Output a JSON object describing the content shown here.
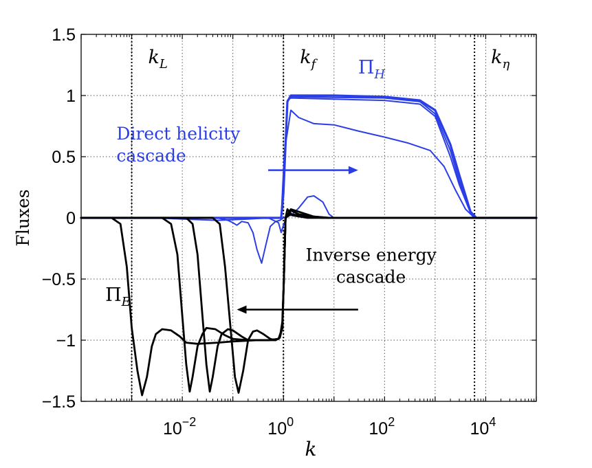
{
  "chart_data": {
    "type": "line",
    "xscale": "log",
    "xlim": [
      0.0001,
      100000
    ],
    "ylim": [
      -1.5,
      1.5
    ],
    "xlabel": "k",
    "ylabel": "Fluxes",
    "grid": "dotted",
    "yticks": [
      {
        "value": 1.5,
        "label": "1.5"
      },
      {
        "value": 1,
        "label": "1"
      },
      {
        "value": 0.5,
        "label": "0.5"
      },
      {
        "value": 0,
        "label": "0"
      },
      {
        "value": -0.5,
        "label": "−0.5"
      },
      {
        "value": -1,
        "label": "−1"
      },
      {
        "value": -1.5,
        "label": "−1.5"
      }
    ],
    "xticks": [
      {
        "value": 0.01,
        "base": "10",
        "exp": "−2"
      },
      {
        "value": 1,
        "base": "10",
        "exp": "0"
      },
      {
        "value": 100,
        "base": "10",
        "exp": "2"
      },
      {
        "value": 10000,
        "base": "10",
        "exp": "4"
      }
    ],
    "vlines": [
      {
        "k": 0.001,
        "label_main": "k",
        "label_sub": "L"
      },
      {
        "k": 1,
        "label_main": "k",
        "label_sub": "f"
      },
      {
        "k": 6000,
        "label_main": "k",
        "label_sub": "η"
      }
    ],
    "series_labels": [
      {
        "main": "Π",
        "sub": "H",
        "color": "#2b3ee6",
        "at": [
          30,
          1.18
        ]
      },
      {
        "main": "Π",
        "sub": "E",
        "color": "#000000",
        "at": [
          0.0003,
          -0.68
        ]
      }
    ],
    "annotations": [
      {
        "lines": [
          "Direct helicity",
          "cascade"
        ],
        "color": "#2b3ee6",
        "at": [
          0.0005,
          0.64
        ]
      },
      {
        "lines": [
          "Inverse energy",
          "cascade"
        ],
        "color": "#000000",
        "at": [
          5,
          -0.35
        ]
      }
    ],
    "arrows": [
      {
        "from": [
          0.5,
          0.39
        ],
        "to": [
          30,
          0.39
        ],
        "color": "#2b3ee6"
      },
      {
        "from": [
          30,
          -0.75
        ],
        "to": [
          0.12,
          -0.75
        ],
        "color": "#000000"
      }
    ],
    "series": [
      {
        "name": "Pi_H full",
        "color": "#2b3ee6",
        "width": 3.2,
        "points": [
          [
            0.0001,
            0
          ],
          [
            0.9,
            0
          ],
          [
            1,
            0.2
          ],
          [
            1.2,
            0.95
          ],
          [
            1.4,
            1.0
          ],
          [
            10,
            1.0
          ],
          [
            100,
            0.99
          ],
          [
            500,
            0.96
          ],
          [
            1000,
            0.88
          ],
          [
            2000,
            0.6
          ],
          [
            3000,
            0.35
          ],
          [
            5000,
            0.05
          ],
          [
            6500,
            0
          ],
          [
            100000,
            0
          ]
        ]
      },
      {
        "name": "Pi_H 2",
        "color": "#2b3ee6",
        "width": 2,
        "points": [
          [
            0.0001,
            0
          ],
          [
            0.9,
            0
          ],
          [
            1,
            0.2
          ],
          [
            1.2,
            0.96
          ],
          [
            1.4,
            0.99
          ],
          [
            10,
            0.985
          ],
          [
            100,
            0.98
          ],
          [
            500,
            0.95
          ],
          [
            1000,
            0.85
          ],
          [
            2000,
            0.55
          ],
          [
            3000,
            0.3
          ],
          [
            5000,
            0.05
          ],
          [
            6500,
            0
          ],
          [
            100000,
            0
          ]
        ]
      },
      {
        "name": "Pi_H 3",
        "color": "#2b3ee6",
        "width": 2,
        "points": [
          [
            0.0001,
            0
          ],
          [
            0.9,
            0
          ],
          [
            1,
            0.2
          ],
          [
            1.2,
            0.96
          ],
          [
            1.4,
            0.98
          ],
          [
            10,
            0.97
          ],
          [
            100,
            0.96
          ],
          [
            500,
            0.93
          ],
          [
            1000,
            0.83
          ],
          [
            2000,
            0.5
          ],
          [
            3000,
            0.27
          ],
          [
            5000,
            0.04
          ],
          [
            6500,
            0
          ],
          [
            100000,
            0
          ]
        ]
      },
      {
        "name": "Pi_H 4",
        "color": "#2b3ee6",
        "width": 2,
        "points": [
          [
            0.0001,
            0
          ],
          [
            0.9,
            0
          ],
          [
            1.05,
            0.55
          ],
          [
            1.4,
            0.88
          ],
          [
            2,
            0.82
          ],
          [
            4,
            0.77
          ],
          [
            10,
            0.76
          ],
          [
            30,
            0.71
          ],
          [
            100,
            0.66
          ],
          [
            300,
            0.61
          ],
          [
            800,
            0.55
          ],
          [
            1500,
            0.42
          ],
          [
            2500,
            0.23
          ],
          [
            4000,
            0.07
          ],
          [
            6000,
            0
          ],
          [
            100000,
            0
          ]
        ]
      },
      {
        "name": "Pi_H 5",
        "color": "#2b3ee6",
        "width": 2,
        "points": [
          [
            0.0001,
            0
          ],
          [
            0.05,
            0
          ],
          [
            0.08,
            -0.02
          ],
          [
            0.1,
            -0.04
          ],
          [
            0.12,
            -0.06
          ],
          [
            0.15,
            -0.03
          ],
          [
            0.2,
            -0.04
          ],
          [
            0.25,
            -0.12
          ],
          [
            0.3,
            -0.26
          ],
          [
            0.37,
            -0.37
          ],
          [
            0.45,
            -0.22
          ],
          [
            0.55,
            -0.07
          ],
          [
            0.7,
            -0.03
          ],
          [
            0.85,
            -0.02
          ],
          [
            1,
            0
          ],
          [
            1.5,
            0.03
          ],
          [
            2,
            0.08
          ],
          [
            3,
            0.17
          ],
          [
            4,
            0.18
          ],
          [
            6,
            0.13
          ],
          [
            8,
            0.03
          ],
          [
            10,
            0
          ],
          [
            100000,
            0
          ]
        ]
      },
      {
        "name": "Pi_H 6",
        "color": "#2b3ee6",
        "width": 2,
        "points": [
          [
            0.0001,
            0
          ],
          [
            0.003,
            0
          ],
          [
            0.01,
            -0.01
          ],
          [
            0.05,
            -0.02
          ],
          [
            0.2,
            -0.01
          ],
          [
            0.5,
            0
          ],
          [
            0.8,
            -0.04
          ],
          [
            0.9,
            -0.12
          ],
          [
            1,
            -0.06
          ],
          [
            1.2,
            0.02
          ],
          [
            2,
            0.02
          ],
          [
            5,
            0
          ],
          [
            100000,
            0
          ]
        ]
      },
      {
        "name": "Pi_E 1",
        "color": "#000000",
        "width": 2.8,
        "points": [
          [
            0.0001,
            0
          ],
          [
            0.0004,
            0
          ],
          [
            0.0006,
            -0.05
          ],
          [
            0.0008,
            -0.4
          ],
          [
            0.001,
            -0.9
          ],
          [
            0.0013,
            -1.25
          ],
          [
            0.0016,
            -1.45
          ],
          [
            0.002,
            -1.3
          ],
          [
            0.0025,
            -1.05
          ],
          [
            0.003,
            -0.95
          ],
          [
            0.004,
            -0.91
          ],
          [
            0.006,
            -0.92
          ],
          [
            0.009,
            -0.97
          ],
          [
            0.012,
            -1.02
          ],
          [
            0.02,
            -1.03
          ],
          [
            0.05,
            -1.02
          ],
          [
            0.1,
            -1.01
          ],
          [
            0.3,
            -1.0
          ],
          [
            0.7,
            -1.0
          ],
          [
            0.85,
            -0.98
          ],
          [
            0.95,
            -0.85
          ],
          [
            1.02,
            -0.5
          ],
          [
            1.1,
            0
          ],
          [
            1.4,
            0.03
          ],
          [
            3,
            0.01
          ],
          [
            6,
            0
          ],
          [
            100000,
            0
          ]
        ]
      },
      {
        "name": "Pi_E 2",
        "color": "#000000",
        "width": 2.8,
        "points": [
          [
            0.0001,
            0
          ],
          [
            0.004,
            0
          ],
          [
            0.006,
            -0.05
          ],
          [
            0.008,
            -0.3
          ],
          [
            0.01,
            -0.8
          ],
          [
            0.012,
            -1.2
          ],
          [
            0.014,
            -1.42
          ],
          [
            0.016,
            -1.3
          ],
          [
            0.02,
            -1.05
          ],
          [
            0.025,
            -0.95
          ],
          [
            0.03,
            -0.9
          ],
          [
            0.045,
            -0.91
          ],
          [
            0.07,
            -0.96
          ],
          [
            0.1,
            -0.99
          ],
          [
            0.2,
            -1.0
          ],
          [
            0.5,
            -1.0
          ],
          [
            0.8,
            -0.99
          ],
          [
            0.95,
            -0.9
          ],
          [
            1.02,
            -0.5
          ],
          [
            1.1,
            0
          ],
          [
            1.4,
            0.06
          ],
          [
            2,
            0.03
          ],
          [
            4,
            0.01
          ],
          [
            8,
            0
          ],
          [
            100000,
            0
          ]
        ]
      },
      {
        "name": "Pi_E 3",
        "color": "#000000",
        "width": 2.8,
        "points": [
          [
            0.0001,
            0
          ],
          [
            0.012,
            0
          ],
          [
            0.016,
            -0.05
          ],
          [
            0.02,
            -0.3
          ],
          [
            0.025,
            -0.8
          ],
          [
            0.03,
            -1.2
          ],
          [
            0.035,
            -1.42
          ],
          [
            0.04,
            -1.3
          ],
          [
            0.05,
            -1.05
          ],
          [
            0.06,
            -0.95
          ],
          [
            0.08,
            -0.91
          ],
          [
            0.1,
            -0.92
          ],
          [
            0.15,
            -0.97
          ],
          [
            0.2,
            -1.0
          ],
          [
            0.5,
            -1.0
          ],
          [
            0.8,
            -0.99
          ],
          [
            0.95,
            -0.9
          ],
          [
            1.02,
            -0.5
          ],
          [
            1.1,
            0
          ],
          [
            1.4,
            0.07
          ],
          [
            2,
            0.05
          ],
          [
            4,
            0.01
          ],
          [
            8,
            0
          ],
          [
            100000,
            0
          ]
        ]
      },
      {
        "name": "Pi_E 4",
        "color": "#000000",
        "width": 2.8,
        "points": [
          [
            0.0001,
            0
          ],
          [
            0.04,
            0
          ],
          [
            0.055,
            -0.05
          ],
          [
            0.07,
            -0.4
          ],
          [
            0.09,
            -0.9
          ],
          [
            0.11,
            -1.3
          ],
          [
            0.13,
            -1.43
          ],
          [
            0.16,
            -1.25
          ],
          [
            0.2,
            -1.0
          ],
          [
            0.25,
            -0.93
          ],
          [
            0.3,
            -0.92
          ],
          [
            0.4,
            -0.95
          ],
          [
            0.55,
            -0.99
          ],
          [
            0.7,
            -1.0
          ],
          [
            0.85,
            -0.98
          ],
          [
            0.95,
            -0.9
          ],
          [
            1.02,
            -0.5
          ],
          [
            1.1,
            0
          ],
          [
            1.2,
            0.07
          ],
          [
            1.5,
            0.02
          ],
          [
            3,
            0
          ],
          [
            100000,
            0
          ]
        ]
      }
    ]
  }
}
